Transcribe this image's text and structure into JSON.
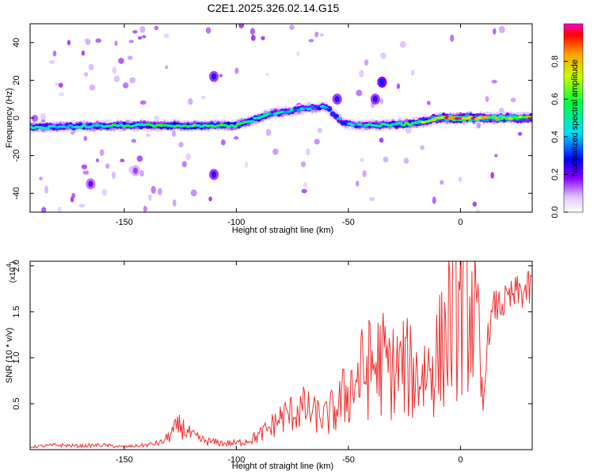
{
  "title": "C2E1.2025.326.02.14.G15",
  "chart_data": [
    {
      "type": "heatmap",
      "title": "C2E1.2025.326.02.14.G15",
      "xlabel": "Height of straight line (km)",
      "ylabel": "Frequency (Hz)",
      "xlim": [
        -192,
        32
      ],
      "ylim": [
        -50,
        50
      ],
      "xticks": [
        -150,
        -100,
        -50,
        0
      ],
      "xtick_labels": [
        "-150",
        "-100",
        "-50",
        "0"
      ],
      "yticks": [
        -40,
        -20,
        0,
        20,
        40
      ],
      "ytick_labels": [
        "-40",
        "-20",
        "0",
        "20",
        "40"
      ],
      "colorbar": {
        "label": "Normalized spectral amplitude",
        "range": [
          0,
          1
        ],
        "ticks": [
          0.0,
          0.2,
          0.4,
          0.6,
          0.8
        ],
        "tick_labels": [
          "0.0",
          "0.2",
          "0.4",
          "0.6",
          "0.8"
        ]
      },
      "ridge": [
        {
          "x": -192,
          "y": -5,
          "amp": 0.45
        },
        {
          "x": -150,
          "y": -4,
          "amp": 0.5
        },
        {
          "x": -120,
          "y": -4,
          "amp": 0.55
        },
        {
          "x": -100,
          "y": -4,
          "amp": 0.5
        },
        {
          "x": -85,
          "y": 2,
          "amp": 0.45
        },
        {
          "x": -70,
          "y": 5,
          "amp": 0.4
        },
        {
          "x": -60,
          "y": 6,
          "amp": 0.35
        },
        {
          "x": -52,
          "y": -3,
          "amp": 0.35
        },
        {
          "x": -40,
          "y": -4,
          "amp": 0.45
        },
        {
          "x": -20,
          "y": -3,
          "amp": 0.55
        },
        {
          "x": -10,
          "y": 0,
          "amp": 0.7
        },
        {
          "x": 0,
          "y": 0,
          "amp": 1.0
        },
        {
          "x": 10,
          "y": 0,
          "amp": 0.75
        },
        {
          "x": 32,
          "y": 0,
          "amp": 0.7
        }
      ],
      "blobs": [
        {
          "x": -110,
          "y": 22,
          "amp": 0.25
        },
        {
          "x": -110,
          "y": -30,
          "amp": 0.25
        },
        {
          "x": -35,
          "y": 19,
          "amp": 0.3
        },
        {
          "x": -38,
          "y": 10,
          "amp": 0.25
        },
        {
          "x": -55,
          "y": 10,
          "amp": 0.25
        },
        {
          "x": -165,
          "y": -35,
          "amp": 0.2
        },
        {
          "x": -145,
          "y": -28,
          "amp": 0.15
        }
      ]
    },
    {
      "type": "line",
      "xlabel": "Height of straight line (km)",
      "ylabel": "SNR (10 * v/v)",
      "multiplier_label": "(x10",
      "multiplier_exp": "4",
      "multiplier_close": ")",
      "xlim": [
        -192,
        32
      ],
      "ylim": [
        0,
        20500
      ],
      "xticks": [
        -150,
        -100,
        -50,
        0
      ],
      "xtick_labels": [
        "-150",
        "-100",
        "-50",
        "0"
      ],
      "yticks": [
        5000,
        10000,
        15000,
        20000
      ],
      "ytick_labels": [
        "0.5",
        "1.0",
        "1.5",
        "2.0"
      ],
      "color": "#ee3030",
      "series": [
        {
          "name": "SNR",
          "x": [
            -192,
            -180,
            -170,
            -160,
            -150,
            -140,
            -133,
            -128,
            -125,
            -120,
            -115,
            -110,
            -105,
            -100,
            -95,
            -90,
            -85,
            -80,
            -75,
            -70,
            -65,
            -60,
            -55,
            -50,
            -45,
            -40,
            -35,
            -30,
            -25,
            -20,
            -15,
            -10,
            -5,
            0,
            5,
            8,
            10,
            12,
            15,
            20,
            25,
            32
          ],
          "y": [
            300,
            500,
            400,
            500,
            300,
            500,
            800,
            2000,
            2600,
            1500,
            1000,
            800,
            700,
            700,
            1000,
            1500,
            2400,
            3500,
            4000,
            4500,
            3800,
            3500,
            4500,
            6500,
            8000,
            9000,
            9500,
            8500,
            9000,
            8000,
            8500,
            10000,
            13500,
            15500,
            16000,
            11000,
            4000,
            12000,
            15500,
            16000,
            17000,
            17500
          ]
        }
      ]
    }
  ]
}
